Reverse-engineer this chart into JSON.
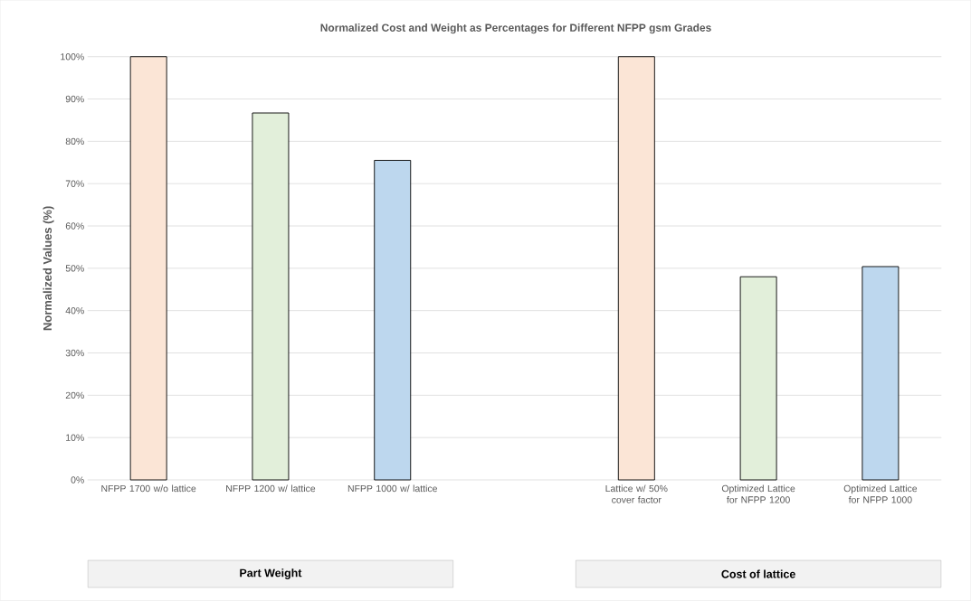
{
  "chart_data": {
    "type": "bar",
    "title": "Normalized Cost and Weight as Percentages for Different NFPP gsm Grades",
    "ylabel": "Normalized Values  (%)",
    "categories": [
      "NFPP 1700 w/o lattice",
      "NFPP 1200 w/ lattice",
      "NFPP 1000 w/ lattice",
      null,
      "Lattice w/ 50% cover factor",
      "Optimized Lattice for NFPP 1200",
      "Optimized Lattice for NFPP 1000"
    ],
    "values": [
      100,
      86.7,
      75.5,
      null,
      100,
      48.0,
      50.4
    ],
    "colors": [
      "#fbe5d6",
      "#e2efda",
      "#bdd7ee",
      null,
      "#fbe5d6",
      "#e2efda",
      "#bdd7ee"
    ],
    "ylim": [
      0,
      100
    ],
    "yticks": [
      {
        "value": 0,
        "label": "0%"
      },
      {
        "value": 10,
        "label": "10%"
      },
      {
        "value": 20,
        "label": "20%"
      },
      {
        "value": 30,
        "label": "30%"
      },
      {
        "value": 40,
        "label": "40%"
      },
      {
        "value": 50,
        "label": "50%"
      },
      {
        "value": 60,
        "label": "60%"
      },
      {
        "value": 70,
        "label": "70%"
      },
      {
        "value": 80,
        "label": "80%"
      },
      {
        "value": 90,
        "label": "90%"
      },
      {
        "value": 100,
        "label": "100%"
      }
    ],
    "grid": "y",
    "annotations": [
      "Part Weight",
      "Cost of lattice"
    ]
  }
}
